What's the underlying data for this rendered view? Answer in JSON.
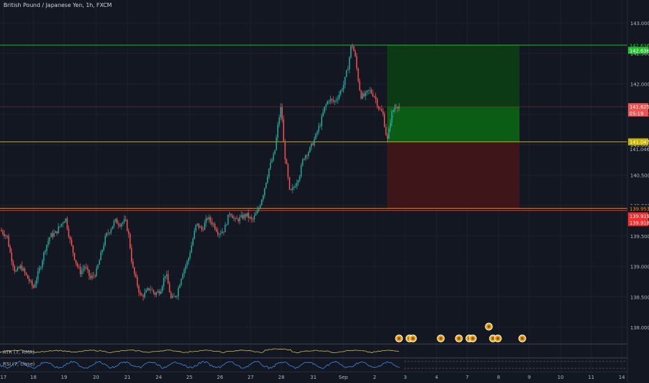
{
  "header": {
    "title": "British Pound / Japanese Yen, 1h, FXCM"
  },
  "colors": {
    "background": "#131722",
    "grid": "#1e2230",
    "up": "#26a69a",
    "down": "#ef5350",
    "profit_zone": "#0b5c14",
    "profit_zone_dark": "#0c3a14",
    "loss_zone": "#3e1619",
    "green_line": "#22c22c",
    "yellow_line": "#c8b400",
    "red_line": "#ff2a2a",
    "orange_line": "#ff8c00",
    "atr_line": "#d4c04a",
    "rsi_line": "#3d8ee8"
  },
  "chart_data": {
    "type": "candlestick",
    "title": "British Pound / Japanese Yen, 1h, FXCM",
    "y_axis": {
      "range": [
        137.6,
        143.15
      ],
      "ticks": [
        {
          "value": 143.0,
          "label": "143.000"
        },
        {
          "value": 142.5,
          "label": "142.500"
        },
        {
          "value": 142.0,
          "label": "142.000"
        },
        {
          "value": 141.5,
          "label": "141.500"
        },
        {
          "value": 141.0,
          "label": "141.000"
        },
        {
          "value": 140.5,
          "label": "140.500"
        },
        {
          "value": 140.0,
          "label": "140.000"
        },
        {
          "value": 139.5,
          "label": "139.500"
        },
        {
          "value": 139.0,
          "label": "139.000"
        },
        {
          "value": 138.5,
          "label": "138.500"
        },
        {
          "value": 138.0,
          "label": "138.000"
        }
      ]
    },
    "x_axis": {
      "range": [
        0,
        900
      ],
      "ticks": [
        {
          "value": 5,
          "label": "17"
        },
        {
          "value": 48,
          "label": "18"
        },
        {
          "value": 92,
          "label": "19"
        },
        {
          "value": 138,
          "label": "20"
        },
        {
          "value": 183,
          "label": "21"
        },
        {
          "value": 228,
          "label": "24"
        },
        {
          "value": 272,
          "label": "25"
        },
        {
          "value": 316,
          "label": "26"
        },
        {
          "value": 360,
          "label": "27"
        },
        {
          "value": 404,
          "label": "28"
        },
        {
          "value": 450,
          "label": "31"
        },
        {
          "value": 493,
          "label": "Sep"
        },
        {
          "value": 538,
          "label": "2"
        },
        {
          "value": 582,
          "label": "3"
        },
        {
          "value": 627,
          "label": "4"
        },
        {
          "value": 671,
          "label": "7"
        },
        {
          "value": 716,
          "label": "8"
        },
        {
          "value": 760,
          "label": "9"
        },
        {
          "value": 805,
          "label": "10"
        },
        {
          "value": 849,
          "label": "11"
        },
        {
          "value": 893,
          "label": "14"
        }
      ]
    },
    "path": [
      [
        0,
        139.6
      ],
      [
        10,
        139.5
      ],
      [
        15,
        139.2
      ],
      [
        22,
        138.9
      ],
      [
        30,
        139.0
      ],
      [
        40,
        138.8
      ],
      [
        48,
        138.65
      ],
      [
        58,
        139.0
      ],
      [
        65,
        139.3
      ],
      [
        72,
        139.5
      ],
      [
        80,
        139.55
      ],
      [
        88,
        139.7
      ],
      [
        94,
        139.8
      ],
      [
        100,
        139.45
      ],
      [
        108,
        139.1
      ],
      [
        115,
        138.9
      ],
      [
        122,
        139.0
      ],
      [
        130,
        138.8
      ],
      [
        138,
        138.9
      ],
      [
        145,
        139.2
      ],
      [
        152,
        139.5
      ],
      [
        158,
        139.6
      ],
      [
        165,
        139.75
      ],
      [
        172,
        139.7
      ],
      [
        180,
        139.75
      ],
      [
        185,
        139.5
      ],
      [
        190,
        139.0
      ],
      [
        196,
        138.75
      ],
      [
        202,
        138.5
      ],
      [
        208,
        138.55
      ],
      [
        215,
        138.65
      ],
      [
        222,
        138.55
      ],
      [
        230,
        138.6
      ],
      [
        238,
        138.9
      ],
      [
        246,
        138.45
      ],
      [
        254,
        138.55
      ],
      [
        262,
        138.9
      ],
      [
        270,
        139.1
      ],
      [
        276,
        139.4
      ],
      [
        282,
        139.7
      ],
      [
        290,
        139.6
      ],
      [
        298,
        139.8
      ],
      [
        306,
        139.7
      ],
      [
        314,
        139.55
      ],
      [
        322,
        139.6
      ],
      [
        330,
        139.9
      ],
      [
        338,
        139.75
      ],
      [
        346,
        139.8
      ],
      [
        354,
        139.85
      ],
      [
        362,
        139.75
      ],
      [
        370,
        139.9
      ],
      [
        378,
        140.2
      ],
      [
        386,
        140.6
      ],
      [
        394,
        140.85
      ],
      [
        400,
        141.4
      ],
      [
        404,
        141.65
      ],
      [
        408,
        140.9
      ],
      [
        412,
        140.6
      ],
      [
        416,
        140.2
      ],
      [
        422,
        140.3
      ],
      [
        430,
        140.5
      ],
      [
        436,
        140.8
      ],
      [
        444,
        140.9
      ],
      [
        452,
        141.1
      ],
      [
        460,
        141.35
      ],
      [
        466,
        141.6
      ],
      [
        472,
        141.75
      ],
      [
        480,
        141.7
      ],
      [
        488,
        141.85
      ],
      [
        494,
        142.0
      ],
      [
        500,
        142.3
      ],
      [
        505,
        142.68
      ],
      [
        510,
        142.45
      ],
      [
        514,
        142.1
      ],
      [
        518,
        141.8
      ],
      [
        524,
        141.8
      ],
      [
        530,
        141.9
      ],
      [
        538,
        141.8
      ],
      [
        544,
        141.6
      ],
      [
        550,
        141.5
      ],
      [
        556,
        141.05
      ],
      [
        562,
        141.5
      ],
      [
        568,
        141.65
      ],
      [
        574,
        141.63
      ]
    ],
    "annotations": [
      {
        "name": "take-profit-line",
        "price": 142.636,
        "label": "142.636"
      },
      {
        "name": "current-price-line",
        "price": 141.625,
        "label": "141.625"
      },
      {
        "name": "entry-line",
        "price": 141.047,
        "label": "141.047"
      },
      {
        "name": "stop-line",
        "price": 139.953,
        "label": "139.953"
      }
    ],
    "position_box": {
      "x_start": 556,
      "x_end": 746,
      "target": 142.636,
      "entry": 141.047,
      "stop": 139.953,
      "current": 141.625
    },
    "price_labels": [
      {
        "price": 142.636,
        "label": "142.636",
        "color": "#22c22c",
        "kind": "line"
      },
      {
        "price": 142.55,
        "label": "142.636",
        "color": "#22c22c",
        "kind": "badge"
      },
      {
        "price": 141.625,
        "label": "141.625",
        "color": "#ef5350",
        "kind": "badge"
      },
      {
        "price": 141.52,
        "label": "05:19",
        "color": "#ef5350",
        "kind": "badge"
      },
      {
        "price": 141.047,
        "label": "141.047",
        "color": "#c8b400",
        "kind": "badge"
      },
      {
        "price": 140.93,
        "label": "141.046",
        "color": "#b2b5be",
        "kind": "text"
      },
      {
        "price": 139.953,
        "label": "139.953",
        "color": "#ff8c00",
        "kind": "line"
      },
      {
        "price": 139.83,
        "label": "139.919",
        "color": "#ff2a2a",
        "kind": "badge"
      },
      {
        "price": 139.72,
        "label": "139.918",
        "color": "#ff2a2a",
        "kind": "badge"
      }
    ],
    "event_markers": [
      573,
      588,
      593,
      633,
      659,
      674,
      679,
      702,
      708,
      715,
      750
    ]
  },
  "indicators": {
    "atr": {
      "label": "ATR (7, RMA)"
    },
    "rsi": {
      "label": "RSI (7, close)"
    }
  }
}
